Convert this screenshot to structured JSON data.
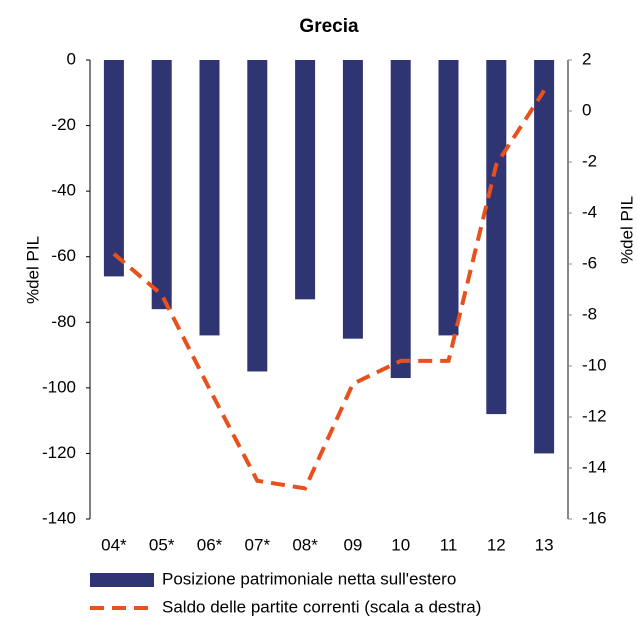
{
  "chart_data": {
    "type": "bar_line",
    "title": "Grecia",
    "y_label": "%del PIL",
    "y2_label": "%del PIL",
    "categories": [
      "04*",
      "05*",
      "06*",
      "07*",
      "08*",
      "09",
      "10",
      "11",
      "12",
      "13"
    ],
    "series": [
      {
        "name": "Posizione patrimoniale netta sull'estero",
        "type": "bar",
        "color": "#2f3473",
        "values": [
          -66,
          -76,
          -84,
          -95,
          -73,
          -85,
          -97,
          -84,
          -108,
          -120
        ]
      },
      {
        "name": "Saldo delle partite correnti (scala a destra)",
        "type": "line",
        "axis": "y2",
        "color": "#e8501e",
        "values": [
          -5.6,
          -7.2,
          -10.9,
          -14.5,
          -14.8,
          -10.7,
          -9.8,
          -9.8,
          -2.1,
          0.8
        ]
      }
    ],
    "ylim": [
      -140,
      0
    ],
    "yticks": [
      0,
      -20,
      -40,
      -60,
      -80,
      -100,
      -120,
      -140
    ],
    "y2lim": [
      -16,
      2
    ],
    "y2ticks": [
      2,
      0,
      -2,
      -4,
      -6,
      -8,
      -10,
      -12,
      -14,
      -16
    ],
    "grid": false
  }
}
